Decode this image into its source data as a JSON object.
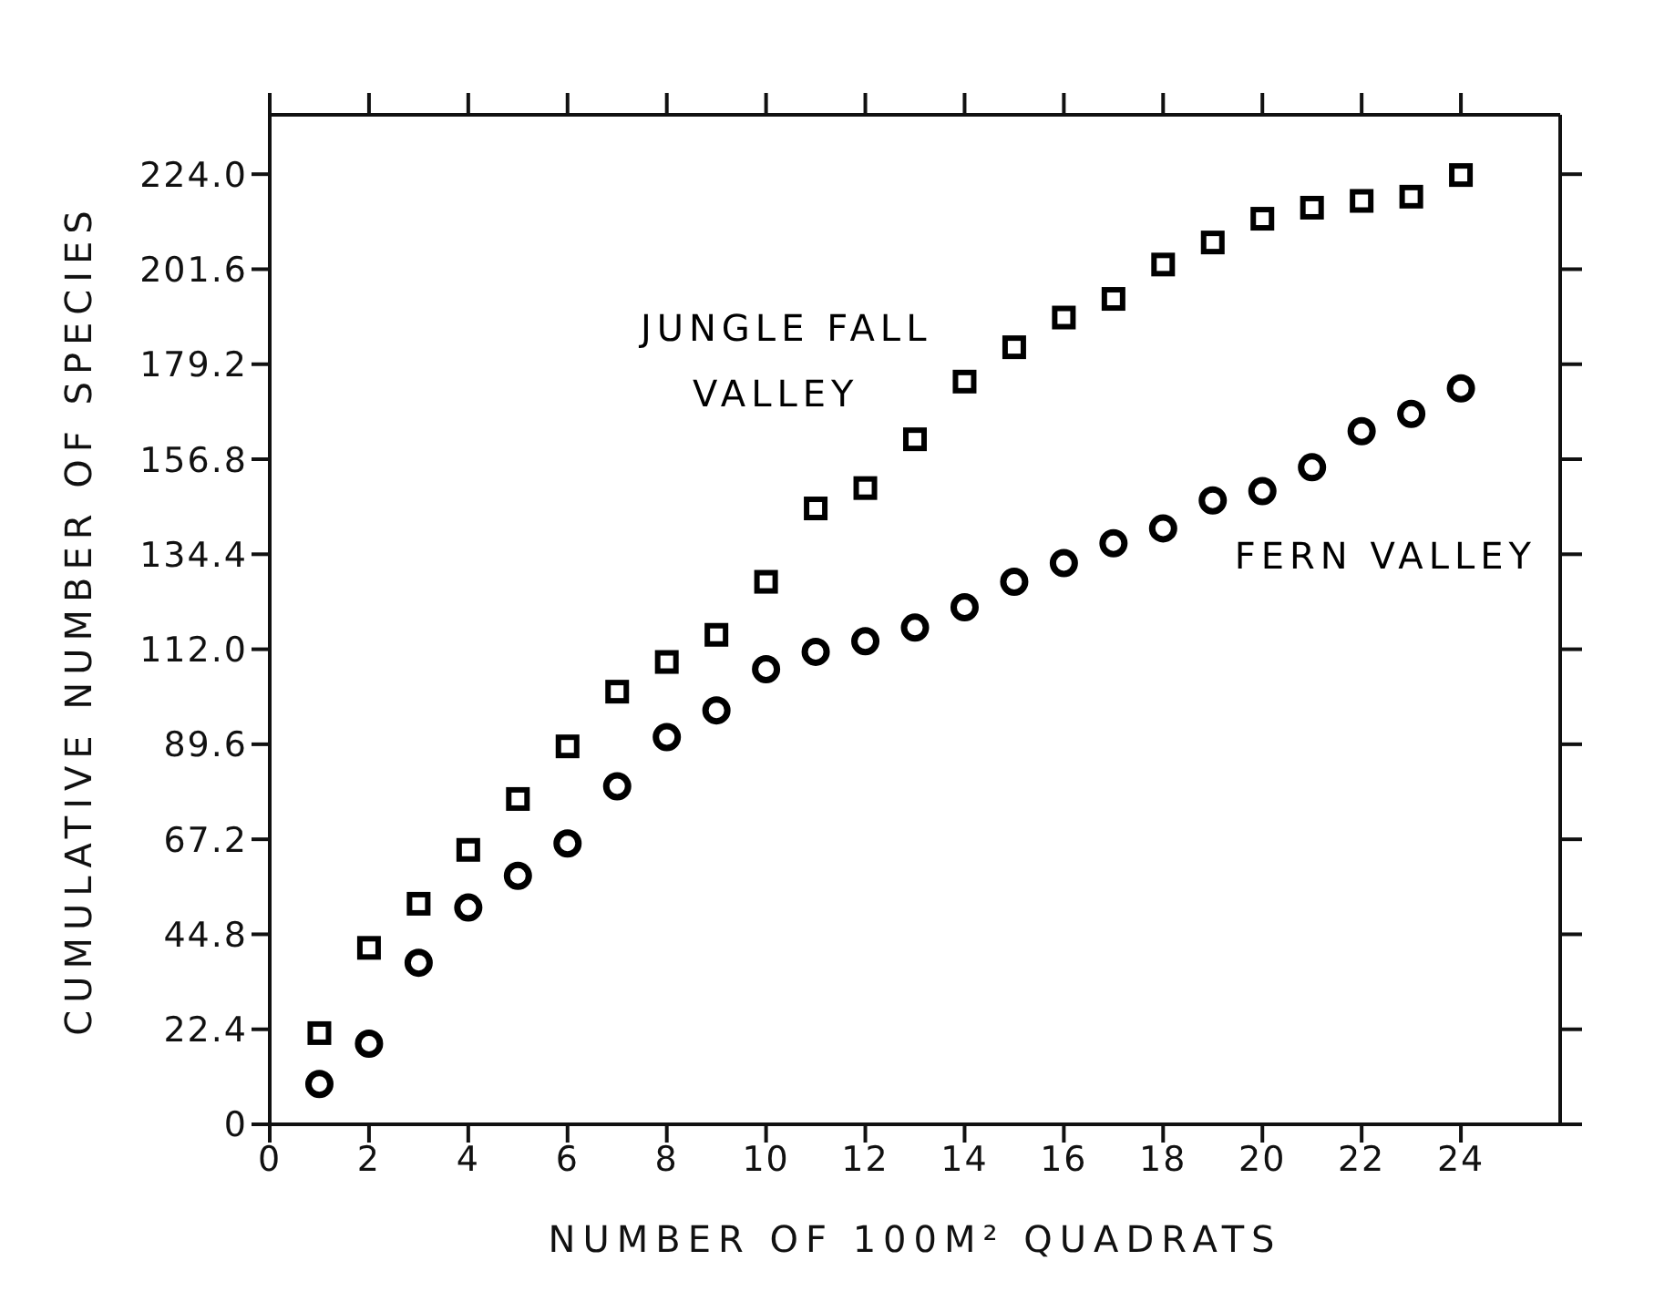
{
  "chart_data": {
    "type": "scatter",
    "xlabel": "NUMBER OF 100M² QUADRATS",
    "ylabel": "CUMULATIVE NUMBER OF SPECIES",
    "x": [
      1,
      2,
      3,
      4,
      5,
      6,
      7,
      8,
      9,
      10,
      11,
      12,
      13,
      14,
      15,
      16,
      17,
      18,
      19,
      20,
      21,
      22,
      23,
      24
    ],
    "series": [
      {
        "name": "JUNGLE FALL VALLEY",
        "color": "#000000",
        "marker": "square",
        "values": [
          21.5,
          41.6,
          52,
          64.7,
          76.7,
          89.1,
          102,
          109,
          115.4,
          127.9,
          145.2,
          150,
          161.5,
          175.1,
          183.2,
          190.2,
          194.6,
          202.7,
          207.9,
          213.5,
          216.1,
          217.7,
          218.7,
          223.8
        ]
      },
      {
        "name": "FERN VALLEY",
        "color": "#000000",
        "marker": "circle",
        "values": [
          9.5,
          19,
          38.1,
          51.1,
          58.6,
          66.2,
          79.7,
          91.3,
          97.6,
          107.3,
          111.4,
          113.9,
          117.1,
          121.9,
          127.9,
          132.3,
          137,
          140.5,
          147.1,
          149.3,
          154.9,
          163.4,
          167.5,
          173.5
        ]
      }
    ],
    "xlim": [
      0,
      26
    ],
    "xticks": [
      0,
      2,
      4,
      6,
      8,
      10,
      12,
      14,
      16,
      18,
      20,
      22,
      24
    ],
    "ylim": [
      0,
      238
    ],
    "yticks": [
      0,
      22.4,
      44.8,
      67.2,
      89.6,
      {
        "value": 112,
        "label": "112.0"
      },
      134.4,
      156.8,
      179.2,
      201.6,
      {
        "value": 224,
        "label": "224.0"
      }
    ]
  }
}
